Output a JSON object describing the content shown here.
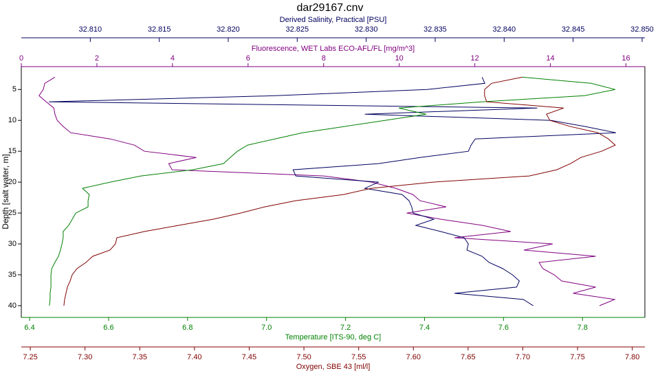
{
  "chart_data": {
    "type": "line",
    "title": "dar29167.cnv",
    "y_label": "Depth [salt water, m]",
    "ylim": [
      1.3,
      41.9
    ],
    "y_inverted": true,
    "yticks": [
      5,
      10,
      15,
      20,
      25,
      30,
      35,
      40
    ],
    "depth": [
      3,
      4,
      5,
      6,
      7,
      8,
      9,
      10,
      11,
      12,
      13,
      14,
      15,
      16,
      17,
      18,
      19,
      20,
      21,
      22,
      23,
      24,
      25,
      26,
      27,
      28,
      29,
      30,
      31,
      32,
      33,
      34,
      35,
      36,
      37,
      38,
      39,
      40
    ],
    "series": [
      {
        "name": "Fluorescence, WET Labs ECO-AFL/FL [mg/m^3]",
        "color": "#800080",
        "axis": "top",
        "xlim": [
          0,
          16.5
        ],
        "xticks": [
          0,
          2,
          4,
          6,
          8,
          10,
          12,
          14,
          16
        ],
        "values": [
          0.89,
          0.62,
          0.58,
          0.47,
          0.66,
          0.86,
          0.89,
          0.95,
          1.11,
          1.31,
          2.35,
          2.99,
          3.26,
          4.63,
          3.9,
          3.99,
          8.0,
          9.27,
          9.91,
          10.36,
          10.55,
          11.24,
          10.2,
          11.1,
          12.2,
          12.95,
          11.46,
          14.06,
          13.3,
          15.2,
          13.7,
          13.8,
          14.1,
          14.3,
          15.2,
          14.6,
          15.7,
          15.3
        ]
      },
      {
        "name": "Derived Salinity, Practical [PSU]",
        "color": "#000060",
        "axis": "top",
        "xlim": [
          32.805,
          32.8502
        ],
        "xticks": [
          {
            "value": 32.81,
            "label": "32.810"
          },
          {
            "value": 32.815,
            "label": "32.815"
          },
          {
            "value": 32.82,
            "label": "32.820"
          },
          {
            "value": 32.825,
            "label": "32.825"
          },
          {
            "value": 32.83,
            "label": "32.830"
          },
          {
            "value": 32.835,
            "label": "32.835"
          },
          {
            "value": 32.84,
            "label": "32.840"
          },
          {
            "value": 32.845,
            "label": "32.845"
          },
          {
            "value": 32.85,
            "label": "32.850"
          }
        ],
        "values": [
          32.8384,
          32.8386,
          32.8344,
          32.8234,
          32.807,
          32.8424,
          32.8299,
          32.8434,
          32.8459,
          32.8481,
          32.8379,
          32.8376,
          32.8374,
          32.8339,
          32.8309,
          32.8247,
          32.8249,
          32.8309,
          32.8299,
          32.8326,
          32.8331,
          32.8333,
          32.8334,
          32.8349,
          32.8336,
          32.8354,
          32.8371,
          32.8374,
          32.8373,
          32.8384,
          32.8389,
          32.8399,
          32.8406,
          32.8411,
          32.8409,
          32.8364,
          32.8414,
          32.8421
        ]
      },
      {
        "name": "Temperature [ITS-90, deg C]",
        "color": "#008000",
        "axis": "bottom",
        "xlim": [
          6.379,
          7.958
        ],
        "xticks": [
          6.4,
          6.6,
          6.8,
          {
            "value": 7,
            "label": "7.0"
          },
          7.2,
          7.4,
          7.6,
          7.8
        ],
        "values": [
          7.648,
          7.822,
          7.883,
          7.805,
          7.544,
          7.335,
          7.404,
          7.3,
          7.196,
          7.091,
          7.021,
          6.952,
          6.926,
          6.908,
          6.891,
          6.813,
          6.682,
          6.604,
          6.534,
          6.551,
          6.548,
          6.548,
          6.517,
          6.508,
          6.499,
          6.485,
          6.485,
          6.482,
          6.478,
          6.473,
          6.464,
          6.456,
          6.454,
          6.454,
          6.454,
          6.452,
          6.452,
          6.45
        ]
      },
      {
        "name": "Oxygen, SBE 43 [ml/l]",
        "color": "#800000",
        "axis": "bottom",
        "xlim": [
          7.2418,
          7.8115
        ],
        "xticks": [
          7.25,
          {
            "value": 7.3,
            "label": "7.30"
          },
          7.35,
          {
            "value": 7.4,
            "label": "7.40"
          },
          7.45,
          {
            "value": 7.5,
            "label": "7.50"
          },
          7.55,
          {
            "value": 7.6,
            "label": "7.60"
          },
          7.65,
          {
            "value": 7.7,
            "label": "7.70"
          },
          7.75,
          {
            "value": 7.8,
            "label": "7.80"
          }
        ],
        "values": [
          7.6996,
          7.6714,
          7.665,
          7.665,
          7.667,
          7.7373,
          7.7216,
          7.7247,
          7.7436,
          7.7687,
          7.7781,
          7.7844,
          7.7718,
          7.753,
          7.7436,
          7.731,
          7.7059,
          7.618,
          7.5615,
          7.5363,
          7.4924,
          7.4641,
          7.4421,
          7.417,
          7.3856,
          7.3542,
          7.3291,
          7.3278,
          7.3228,
          7.3071,
          7.3008,
          7.2927,
          7.2883,
          7.2864,
          7.2839,
          7.2826,
          7.2814,
          7.2807
        ]
      }
    ]
  }
}
